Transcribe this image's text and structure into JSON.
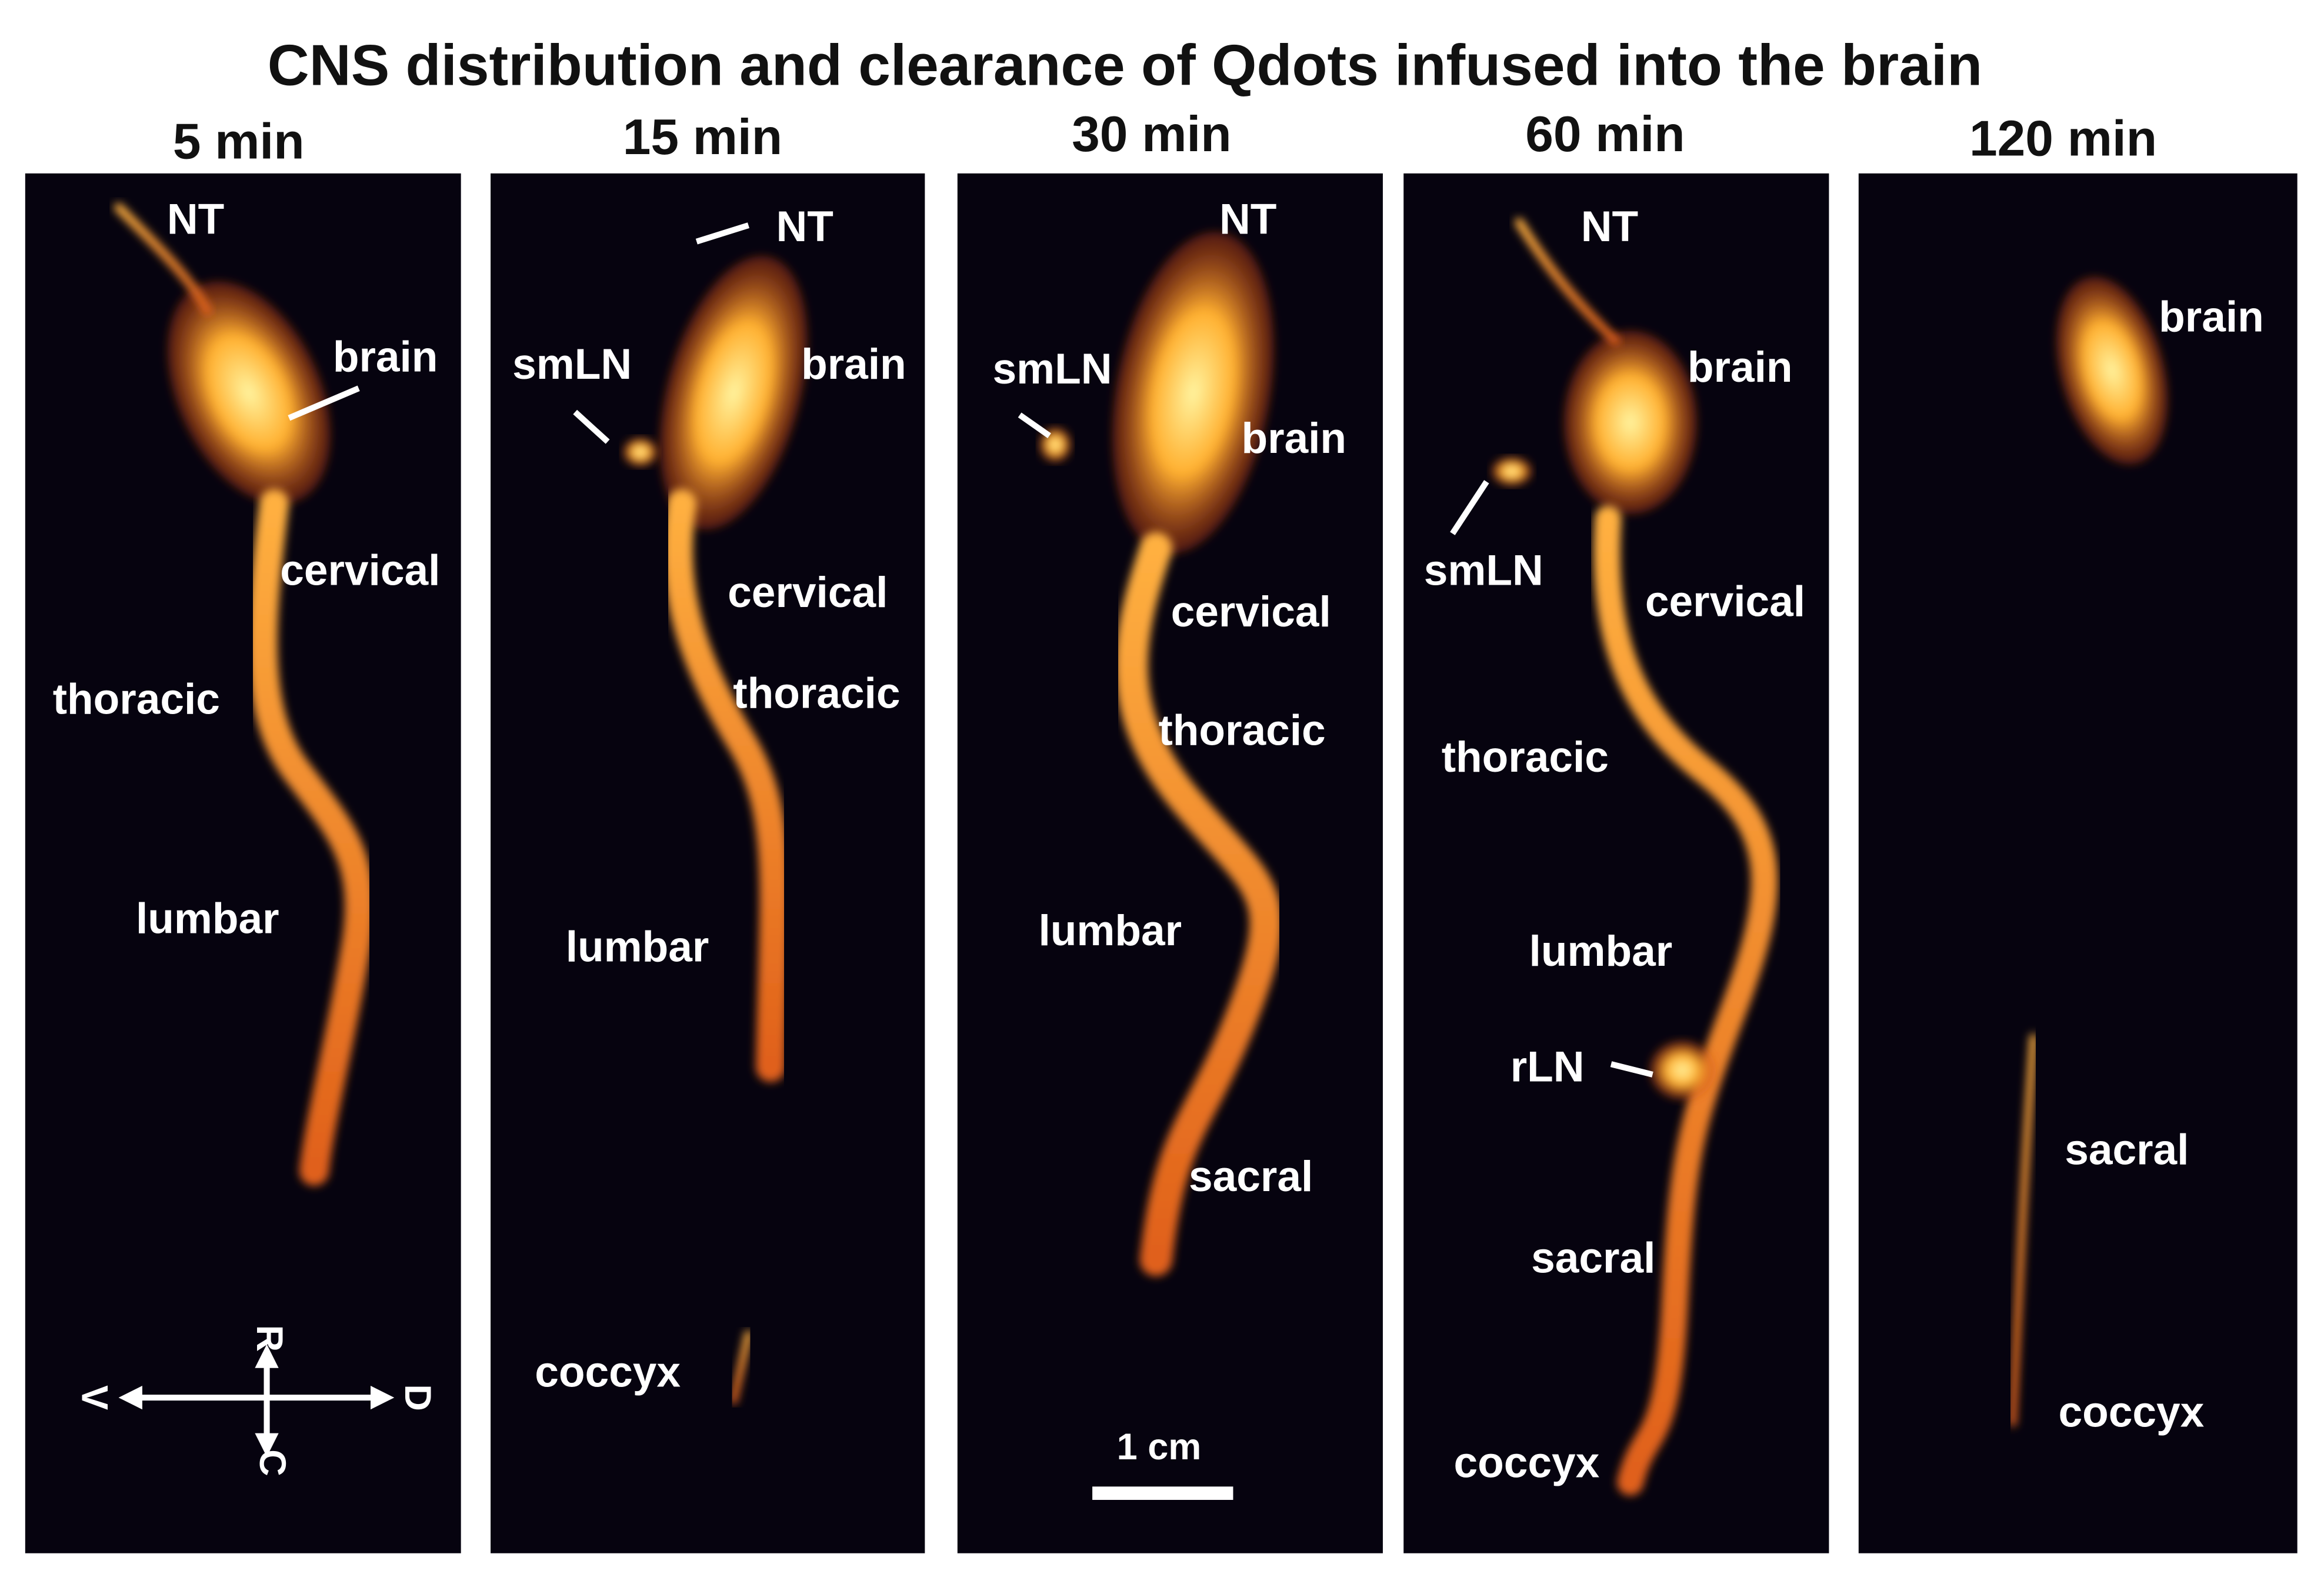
{
  "title": "CNS distribution and clearance of Qdots infused into the brain",
  "panels": [
    {
      "time": "5 min",
      "labels": [
        "NT",
        "brain",
        "cervical",
        "thoracic",
        "lumbar"
      ]
    },
    {
      "time": "15 min",
      "labels": [
        "NT",
        "smLN",
        "brain",
        "cervical",
        "thoracic",
        "lumbar",
        "coccyx"
      ]
    },
    {
      "time": "30 min",
      "labels": [
        "NT",
        "smLN",
        "brain",
        "cervical",
        "thoracic",
        "lumbar",
        "sacral"
      ]
    },
    {
      "time": "60 min",
      "labels": [
        "NT",
        "brain",
        "smLN",
        "cervical",
        "thoracic",
        "lumbar",
        "rLN",
        "sacral",
        "coccyx"
      ]
    },
    {
      "time": "120 min",
      "labels": [
        "brain",
        "sacral",
        "coccyx"
      ]
    }
  ],
  "scale_bar": "1 cm",
  "orientation": {
    "rostral": "R",
    "caudal": "C",
    "ventral": "V",
    "dorsal": "D"
  }
}
